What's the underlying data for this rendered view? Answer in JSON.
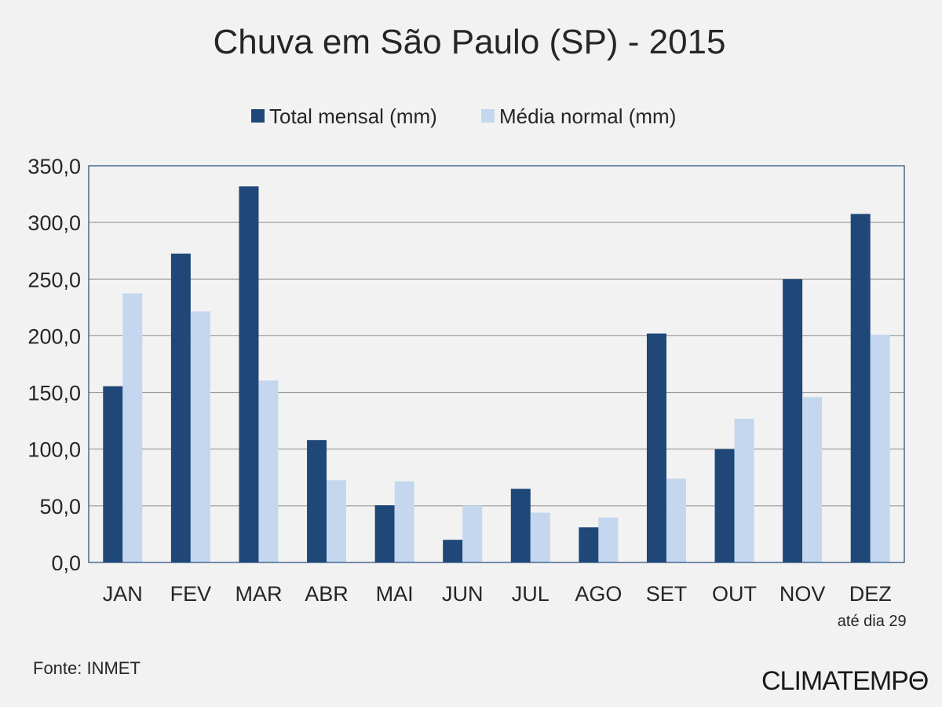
{
  "chart_data": {
    "type": "bar",
    "title": "Chuva em São Paulo (SP) - 2015",
    "categories": [
      "JAN",
      "FEV",
      "MAR",
      "ABR",
      "MAI",
      "JUN",
      "JUL",
      "AGO",
      "SET",
      "OUT",
      "NOV",
      "DEZ"
    ],
    "series": [
      {
        "name": "Total mensal (mm)",
        "color": "#1f4879",
        "values": [
          155.5,
          272.5,
          331.8,
          108.0,
          50.5,
          20.0,
          65.0,
          31.0,
          202.0,
          100.0,
          250.0,
          307.5
        ]
      },
      {
        "name": "Média normal (mm)",
        "color": "#c5d7ef",
        "values": [
          237.4,
          221.5,
          160.5,
          72.6,
          71.6,
          50.1,
          43.9,
          39.6,
          73.9,
          126.8,
          145.8,
          200.9
        ]
      }
    ],
    "ylim": [
      0,
      350
    ],
    "yticks": [
      "0,0",
      "50,0",
      "100,0",
      "150,0",
      "200,0",
      "250,0",
      "300,0",
      "350,0"
    ],
    "grid": true,
    "legend_position": "top",
    "category_note": {
      "category": "DEZ",
      "text": "até dia 29"
    }
  },
  "footer": {
    "source": "Fonte: INMET",
    "brand": "CLIMATEMPO"
  }
}
